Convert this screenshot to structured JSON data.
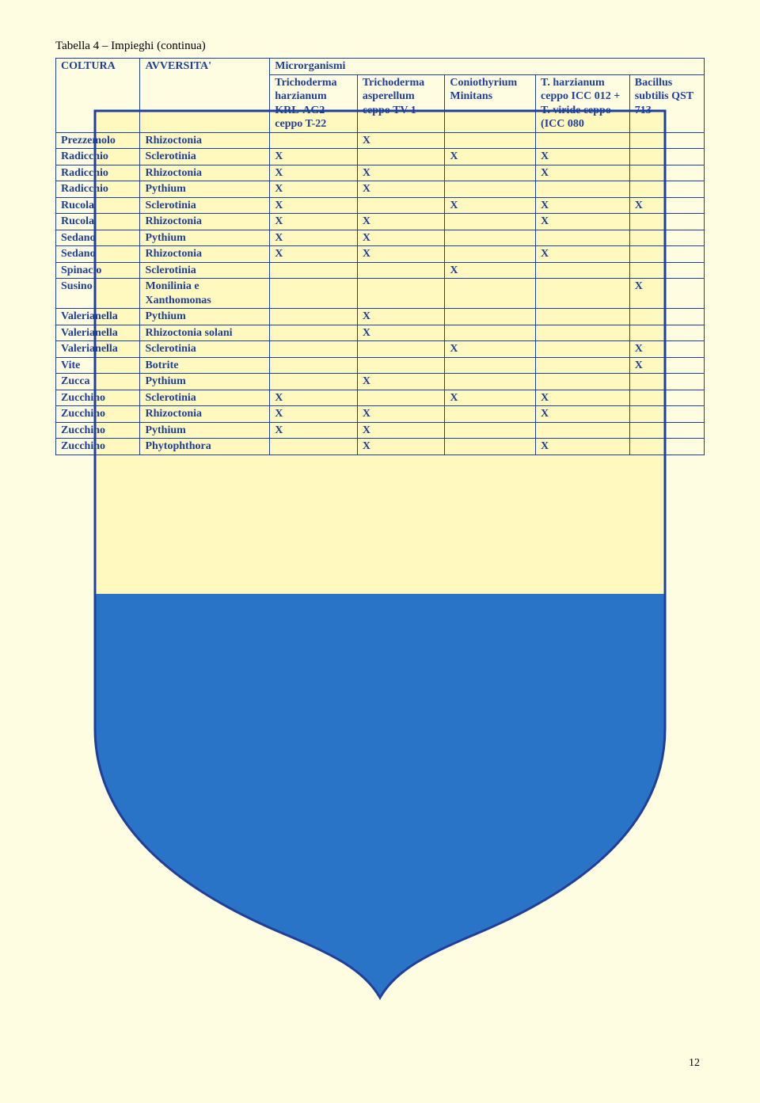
{
  "caption": "Tabella 4 – Impieghi (continua)",
  "pagenum": "12",
  "bg": {
    "page_bg": "#fffde1",
    "shield_top": "#fff9bf",
    "shield_bottom": "#2a74c8",
    "shield_border": "#1f3f9a"
  },
  "table": {
    "micro_header": "Microrganismi",
    "columns": [
      "COLTURA",
      "AVVERSITA'",
      "Trichoderma harzianum KRL-AG2 ceppo T-22",
      "Trichoderma asperellum ceppo TV 1",
      "Coniothyrium Minitans",
      "T. harzianum ceppo ICC 012 + T. viride ceppo (ICC 080",
      "Bacillus subtilis QST 713"
    ],
    "rows": [
      [
        "Prezzemolo",
        "Rhizoctonia",
        "",
        "X",
        "",
        "",
        ""
      ],
      [
        "Radicchio",
        "Sclerotinia",
        "X",
        "",
        "X",
        "X",
        ""
      ],
      [
        "Radicchio",
        "Rhizoctonia",
        "X",
        "X",
        "",
        "X",
        ""
      ],
      [
        "Radicchio",
        "Pythium",
        "X",
        "X",
        "",
        "",
        ""
      ],
      [
        "Rucola",
        "Sclerotinia",
        "X",
        "",
        "X",
        "X",
        "X"
      ],
      [
        "Rucola",
        "Rhizoctonia",
        "X",
        "X",
        "",
        "X",
        ""
      ],
      [
        "Sedano",
        "Pythium",
        "X",
        "X",
        "",
        "",
        ""
      ],
      [
        "Sedano",
        "Rhizoctonia",
        "X",
        "X",
        "",
        "X",
        ""
      ],
      [
        "Spinacio",
        "Sclerotinia",
        "",
        "",
        "X",
        "",
        ""
      ],
      [
        "Susino",
        "Monilinia e Xanthomonas",
        "",
        "",
        "",
        "",
        "X"
      ],
      [
        "Valerianella",
        "Pythium",
        "",
        "X",
        "",
        "",
        ""
      ],
      [
        "Valerianella",
        "Rhizoctonia solani",
        "",
        "X",
        "",
        "",
        ""
      ],
      [
        "Valerianella",
        "Sclerotinia",
        "",
        "",
        "X",
        "",
        "X"
      ],
      [
        "Vite",
        "Botrite",
        "",
        "",
        "",
        "",
        "X"
      ],
      [
        "Zucca",
        "Pythium",
        "",
        "X",
        "",
        "",
        ""
      ],
      [
        "Zucchino",
        "Sclerotinia",
        "X",
        "",
        "X",
        "X",
        ""
      ],
      [
        "Zucchino",
        "Rhizoctonia",
        "X",
        "X",
        "",
        "X",
        ""
      ],
      [
        "Zucchino",
        "Pythium",
        "X",
        "X",
        "",
        "",
        ""
      ],
      [
        "Zucchino",
        "Phytophthora",
        "",
        "X",
        "",
        "X",
        ""
      ]
    ]
  }
}
